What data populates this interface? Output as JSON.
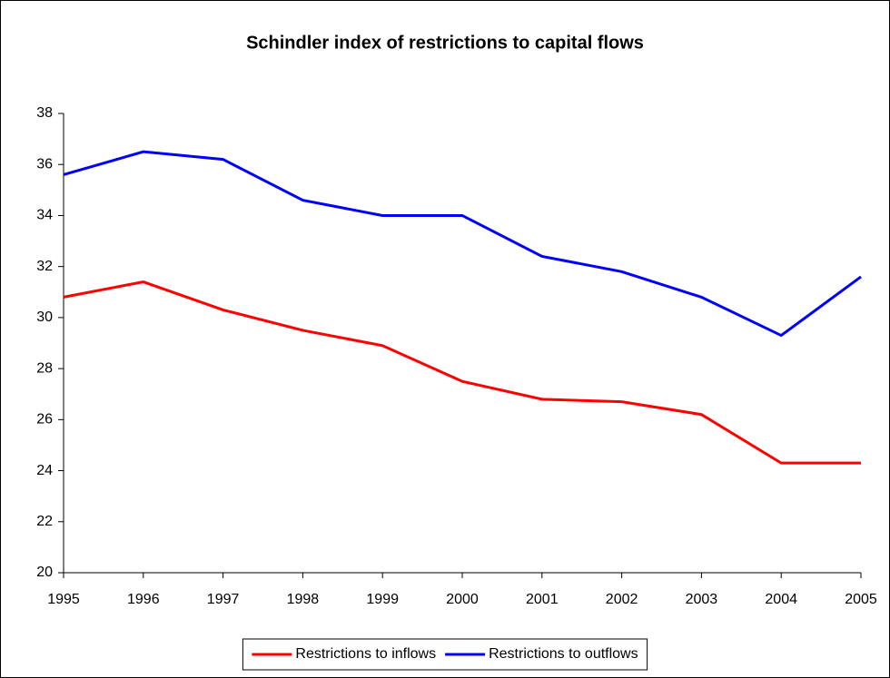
{
  "chart_data": {
    "type": "line",
    "title": "Schindler index of restrictions to capital flows",
    "x": [
      1995,
      1996,
      1997,
      1998,
      1999,
      2000,
      2001,
      2002,
      2003,
      2004,
      2005
    ],
    "xlim": [
      1995,
      2005
    ],
    "xticks": [
      1995,
      1996,
      1997,
      1998,
      1999,
      2000,
      2001,
      2002,
      2003,
      2004,
      2005
    ],
    "ylim": [
      20,
      38
    ],
    "yticks": [
      20,
      22,
      24,
      26,
      28,
      30,
      32,
      34,
      36,
      38
    ],
    "series": [
      {
        "name": "Restrictions to inflows",
        "color": "#ff0000",
        "values": [
          30.8,
          31.4,
          30.3,
          29.5,
          28.9,
          27.5,
          26.8,
          26.7,
          26.2,
          24.3,
          24.3
        ]
      },
      {
        "name": "Restrictions to outflows",
        "color": "#0000ff",
        "values": [
          35.6,
          36.5,
          36.2,
          34.6,
          34.0,
          34.0,
          32.4,
          31.8,
          30.8,
          29.3,
          31.6
        ]
      }
    ],
    "legend": "bottom",
    "grid": false
  }
}
